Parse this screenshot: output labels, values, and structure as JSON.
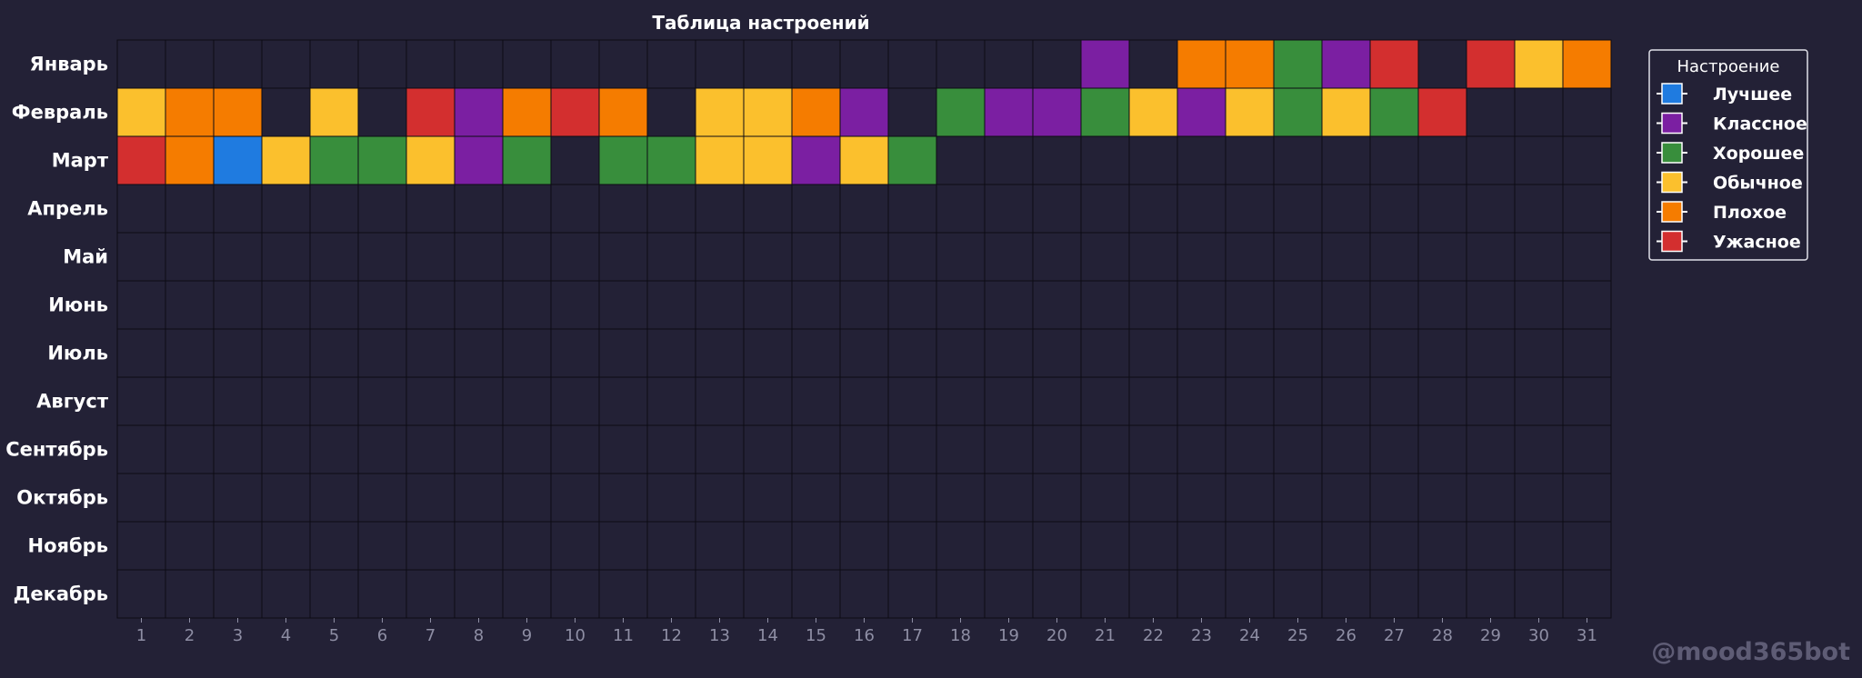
{
  "chart_data": {
    "type": "heatmap",
    "title": "Таблица  настроений",
    "months": [
      "Январь",
      "Февраль",
      "Март",
      "Апрель",
      "Май",
      "Июнь",
      "Июль",
      "Август",
      "Сентябрь",
      "Октябрь",
      "Ноябрь",
      "Декабрь"
    ],
    "days": [
      1,
      2,
      3,
      4,
      5,
      6,
      7,
      8,
      9,
      10,
      11,
      12,
      13,
      14,
      15,
      16,
      17,
      18,
      19,
      20,
      21,
      22,
      23,
      24,
      25,
      26,
      27,
      28,
      29,
      30,
      31
    ],
    "legend": {
      "title": "Настроение",
      "placement": "top-right",
      "items": [
        {
          "key": "best",
          "label": "Лучшее",
          "color": "#1f7be0"
        },
        {
          "key": "great",
          "label": "Классное",
          "color": "#7b1fa2"
        },
        {
          "key": "good",
          "label": "Хорошее",
          "color": "#388e3c"
        },
        {
          "key": "normal",
          "label": "Обычное",
          "color": "#fbc02d"
        },
        {
          "key": "bad",
          "label": "Плохое",
          "color": "#f57c00"
        },
        {
          "key": "awful",
          "label": "Ужасное",
          "color": "#d32f2f"
        }
      ]
    },
    "grid": true,
    "values": [
      [
        null,
        null,
        null,
        null,
        null,
        null,
        null,
        null,
        null,
        null,
        null,
        null,
        null,
        null,
        null,
        null,
        null,
        null,
        null,
        null,
        "great",
        null,
        "bad",
        "bad",
        "good",
        "great",
        "awful",
        null,
        "awful",
        "normal",
        "bad"
      ],
      [
        "normal",
        "bad",
        "bad",
        null,
        "normal",
        null,
        "awful",
        "great",
        "bad",
        "awful",
        "bad",
        null,
        "normal",
        "normal",
        "bad",
        "great",
        null,
        "good",
        "great",
        "great",
        "good",
        "normal",
        "great",
        "normal",
        "good",
        "normal",
        "good",
        "awful",
        null,
        null,
        null
      ],
      [
        "awful",
        "bad",
        "best",
        "normal",
        "good",
        "good",
        "normal",
        "great",
        "good",
        null,
        "good",
        "good",
        "normal",
        "normal",
        "great",
        "normal",
        "good",
        null,
        null,
        null,
        null,
        null,
        null,
        null,
        null,
        null,
        null,
        null,
        null,
        null,
        null
      ],
      [
        null,
        null,
        null,
        null,
        null,
        null,
        null,
        null,
        null,
        null,
        null,
        null,
        null,
        null,
        null,
        null,
        null,
        null,
        null,
        null,
        null,
        null,
        null,
        null,
        null,
        null,
        null,
        null,
        null,
        null,
        null
      ],
      [
        null,
        null,
        null,
        null,
        null,
        null,
        null,
        null,
        null,
        null,
        null,
        null,
        null,
        null,
        null,
        null,
        null,
        null,
        null,
        null,
        null,
        null,
        null,
        null,
        null,
        null,
        null,
        null,
        null,
        null,
        null
      ],
      [
        null,
        null,
        null,
        null,
        null,
        null,
        null,
        null,
        null,
        null,
        null,
        null,
        null,
        null,
        null,
        null,
        null,
        null,
        null,
        null,
        null,
        null,
        null,
        null,
        null,
        null,
        null,
        null,
        null,
        null,
        null
      ],
      [
        null,
        null,
        null,
        null,
        null,
        null,
        null,
        null,
        null,
        null,
        null,
        null,
        null,
        null,
        null,
        null,
        null,
        null,
        null,
        null,
        null,
        null,
        null,
        null,
        null,
        null,
        null,
        null,
        null,
        null,
        null
      ],
      [
        null,
        null,
        null,
        null,
        null,
        null,
        null,
        null,
        null,
        null,
        null,
        null,
        null,
        null,
        null,
        null,
        null,
        null,
        null,
        null,
        null,
        null,
        null,
        null,
        null,
        null,
        null,
        null,
        null,
        null,
        null
      ],
      [
        null,
        null,
        null,
        null,
        null,
        null,
        null,
        null,
        null,
        null,
        null,
        null,
        null,
        null,
        null,
        null,
        null,
        null,
        null,
        null,
        null,
        null,
        null,
        null,
        null,
        null,
        null,
        null,
        null,
        null,
        null
      ],
      [
        null,
        null,
        null,
        null,
        null,
        null,
        null,
        null,
        null,
        null,
        null,
        null,
        null,
        null,
        null,
        null,
        null,
        null,
        null,
        null,
        null,
        null,
        null,
        null,
        null,
        null,
        null,
        null,
        null,
        null,
        null
      ],
      [
        null,
        null,
        null,
        null,
        null,
        null,
        null,
        null,
        null,
        null,
        null,
        null,
        null,
        null,
        null,
        null,
        null,
        null,
        null,
        null,
        null,
        null,
        null,
        null,
        null,
        null,
        null,
        null,
        null,
        null,
        null
      ],
      [
        null,
        null,
        null,
        null,
        null,
        null,
        null,
        null,
        null,
        null,
        null,
        null,
        null,
        null,
        null,
        null,
        null,
        null,
        null,
        null,
        null,
        null,
        null,
        null,
        null,
        null,
        null,
        null,
        null,
        null,
        null
      ]
    ]
  },
  "watermark": "@mood365bot",
  "colors": {
    "background": "#232136",
    "empty_cell": "#232136",
    "cell_border": "#0d0c14",
    "legend_border": "#e0e0e8",
    "tick_text": "#8e8ea4"
  }
}
